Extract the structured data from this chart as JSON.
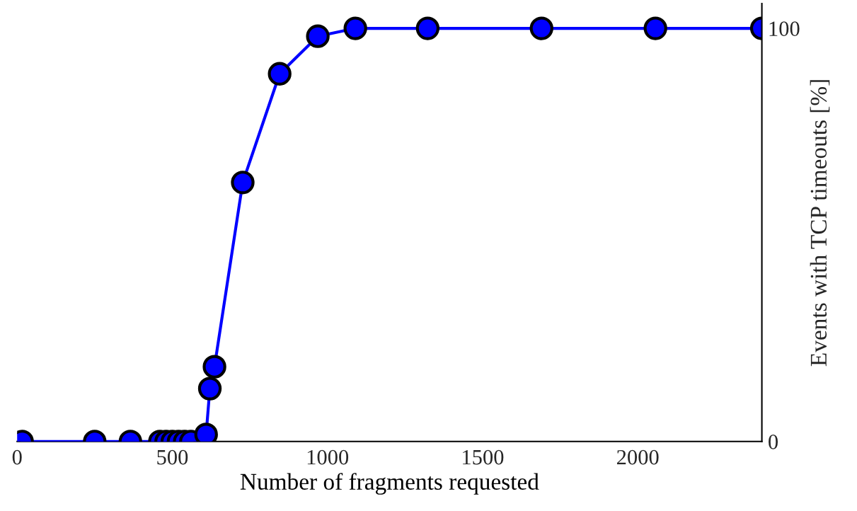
{
  "chart_data": {
    "type": "line",
    "xlabel": "Number of fragments requested",
    "y2label": "Events with TCP timeouts [%]",
    "x": [
      16,
      250,
      365,
      460,
      480,
      500,
      520,
      540,
      560,
      609,
      621,
      636,
      727,
      846,
      969,
      1090,
      1323,
      1690,
      2057,
      2400
    ],
    "series": [
      {
        "color": "#0000ff",
        "axis": "y2",
        "values": [
          0,
          0,
          0,
          0,
          0,
          0,
          0,
          0,
          0,
          1.7,
          12.8,
          18.1,
          62.7,
          89,
          98.1,
          100,
          100,
          100,
          100,
          100
        ]
      }
    ],
    "xlim": [
      0,
      2400
    ],
    "xticks": [
      0,
      500,
      1000,
      1500,
      2000
    ],
    "y2lim": [
      0,
      106
    ],
    "y2ticks": [
      0,
      100
    ],
    "marker": "circle",
    "line_style": "solid",
    "grid": false,
    "legend": false
  }
}
